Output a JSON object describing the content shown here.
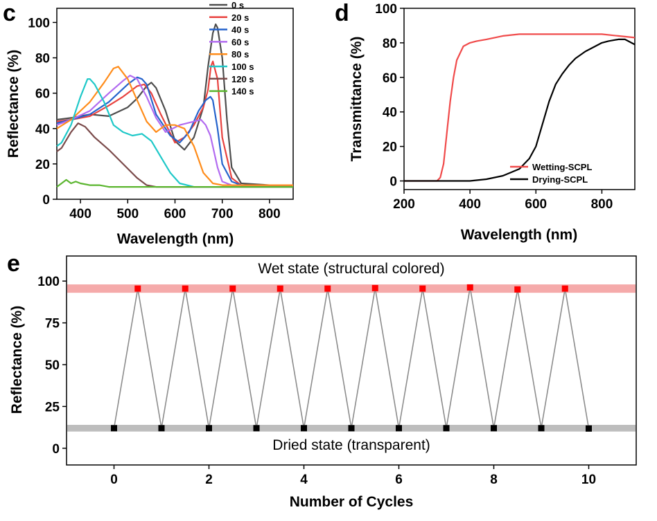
{
  "panels": {
    "c": "c",
    "d": "d",
    "e": "e"
  },
  "chart_data": [
    {
      "id": "c",
      "type": "line",
      "xlabel": "Wavelength (nm)",
      "ylabel": "Reflectance (%)",
      "xlim": [
        350,
        850
      ],
      "ylim": [
        0,
        108
      ],
      "xticks": [
        400,
        500,
        600,
        700,
        800
      ],
      "yticks": [
        0,
        20,
        40,
        60,
        80,
        100
      ],
      "legend_position": "top-right",
      "series": [
        {
          "name": "0 s",
          "color": "#4d4d4d",
          "x": [
            350,
            380,
            420,
            460,
            500,
            520,
            540,
            550,
            560,
            580,
            600,
            620,
            640,
            660,
            670,
            680,
            686,
            690,
            700,
            710,
            720,
            740,
            800,
            850
          ],
          "y": [
            45,
            46,
            48,
            47,
            52,
            57,
            64,
            66,
            63,
            50,
            33,
            28,
            35,
            52,
            75,
            94,
            99,
            97,
            80,
            45,
            18,
            9,
            8,
            8
          ]
        },
        {
          "name": "20 s",
          "color": "#e8423f",
          "x": [
            350,
            380,
            420,
            460,
            490,
            520,
            535,
            550,
            570,
            600,
            620,
            640,
            660,
            670,
            676,
            680,
            690,
            700,
            720,
            740,
            800,
            850
          ],
          "y": [
            44,
            45,
            47,
            53,
            58,
            64,
            65,
            60,
            48,
            32,
            35,
            42,
            52,
            62,
            75,
            78,
            68,
            35,
            12,
            8,
            8,
            8
          ]
        },
        {
          "name": "40 s",
          "color": "#2563cc",
          "x": [
            350,
            380,
            420,
            460,
            500,
            520,
            530,
            540,
            560,
            590,
            610,
            630,
            650,
            665,
            675,
            680,
            690,
            700,
            720,
            740,
            800,
            850
          ],
          "y": [
            43,
            45,
            48,
            55,
            65,
            69,
            68,
            65,
            48,
            36,
            32,
            38,
            50,
            56,
            58,
            56,
            40,
            20,
            10,
            8,
            8,
            8
          ]
        },
        {
          "name": "60 s",
          "color": "#b26bf0",
          "x": [
            350,
            380,
            420,
            460,
            490,
            505,
            520,
            540,
            560,
            580,
            610,
            640,
            655,
            665,
            675,
            690,
            700,
            720,
            740,
            800,
            850
          ],
          "y": [
            42,
            45,
            50,
            60,
            67,
            70,
            68,
            58,
            46,
            38,
            42,
            44,
            45,
            42,
            36,
            18,
            10,
            8,
            8,
            8,
            8
          ]
        },
        {
          "name": "80 s",
          "color": "#ff8c1a",
          "x": [
            350,
            380,
            420,
            450,
            470,
            480,
            500,
            520,
            540,
            560,
            580,
            600,
            620,
            640,
            660,
            680,
            700,
            720,
            800,
            850
          ],
          "y": [
            40,
            45,
            55,
            66,
            74,
            75,
            68,
            56,
            44,
            38,
            42,
            42,
            40,
            30,
            15,
            9,
            8,
            8,
            8,
            8
          ]
        },
        {
          "name": "100 s",
          "color": "#1ec8c8",
          "x": [
            350,
            360,
            380,
            400,
            415,
            420,
            430,
            450,
            470,
            490,
            510,
            530,
            550,
            570,
            590,
            610,
            640,
            680,
            720,
            800,
            850
          ],
          "y": [
            30,
            32,
            42,
            58,
            68,
            68,
            65,
            55,
            42,
            38,
            36,
            37,
            33,
            24,
            15,
            9,
            7,
            7,
            7,
            7,
            7
          ]
        },
        {
          "name": "120 s",
          "color": "#7a4a4a",
          "x": [
            350,
            360,
            380,
            395,
            410,
            430,
            460,
            490,
            520,
            540,
            560,
            580,
            620,
            700,
            800,
            850
          ],
          "y": [
            27,
            29,
            38,
            43,
            41,
            35,
            28,
            20,
            12,
            8,
            7,
            7,
            7,
            7,
            7,
            7
          ]
        },
        {
          "name": "140 s",
          "color": "#5ab52e",
          "x": [
            350,
            360,
            370,
            380,
            390,
            400,
            420,
            440,
            460,
            500,
            600,
            700,
            800,
            850
          ],
          "y": [
            7,
            9,
            11,
            9,
            10,
            9,
            8,
            8,
            7,
            7,
            7,
            7,
            7,
            7
          ]
        }
      ]
    },
    {
      "id": "d",
      "type": "line",
      "xlabel": "Wavelength (nm)",
      "ylabel": "Transmittance (%)",
      "xlim": [
        200,
        900
      ],
      "ylim": [
        -5,
        100
      ],
      "xticks": [
        200,
        400,
        600,
        800
      ],
      "yticks": [
        0,
        20,
        40,
        60,
        80,
        100
      ],
      "legend_position": "bottom-right",
      "series": [
        {
          "name": "Wetting-SCPL",
          "color": "#f04a4a",
          "x": [
            200,
            300,
            310,
            320,
            330,
            340,
            350,
            360,
            380,
            400,
            420,
            450,
            500,
            550,
            600,
            700,
            800,
            850,
            900
          ],
          "y": [
            0,
            0,
            2,
            10,
            28,
            46,
            60,
            70,
            78,
            80,
            81,
            82,
            84,
            85,
            85,
            85,
            85,
            84,
            83
          ]
        },
        {
          "name": "Drying-SCPL",
          "color": "#000000",
          "x": [
            200,
            400,
            450,
            500,
            550,
            580,
            600,
            620,
            640,
            660,
            680,
            700,
            720,
            750,
            780,
            800,
            820,
            850,
            870,
            880,
            890,
            900
          ],
          "y": [
            0,
            0,
            1,
            3,
            7,
            13,
            20,
            33,
            46,
            56,
            62,
            67,
            71,
            75,
            78,
            80,
            81,
            82,
            82,
            81,
            80,
            79
          ]
        }
      ]
    },
    {
      "id": "e",
      "type": "line",
      "xlabel": "Number of Cycles",
      "ylabel": "Reflectance (%)",
      "xlim": [
        -1,
        11
      ],
      "ylim": [
        -10,
        115
      ],
      "xticks": [
        0,
        2,
        4,
        6,
        8,
        10
      ],
      "yticks": [
        0,
        25,
        50,
        75,
        100
      ],
      "annotations": {
        "wet": "Wet state (structural colored)",
        "dry": "Dried state (transparent)"
      },
      "bands": [
        {
          "name": "wet-band",
          "y0": 93,
          "y1": 98,
          "color": "#f5aaaa"
        },
        {
          "name": "dry-band",
          "y0": 10,
          "y1": 14,
          "color": "#bdbdbd"
        }
      ],
      "line_color": "#8c8c8c",
      "wet_color": "#ff0000",
      "dry_color": "#000000",
      "x": [
        0,
        0.5,
        1,
        1.5,
        2,
        2.5,
        3,
        3.5,
        4,
        4.5,
        5,
        5.5,
        6,
        6.5,
        7,
        7.5,
        8,
        8.5,
        9,
        9.5,
        10
      ],
      "y": [
        12,
        95.5,
        12,
        95.5,
        12,
        95.5,
        12,
        95.5,
        12,
        95.5,
        12,
        95.8,
        12,
        95.5,
        12,
        96.2,
        12,
        95,
        12,
        95.5,
        11.8
      ]
    }
  ]
}
